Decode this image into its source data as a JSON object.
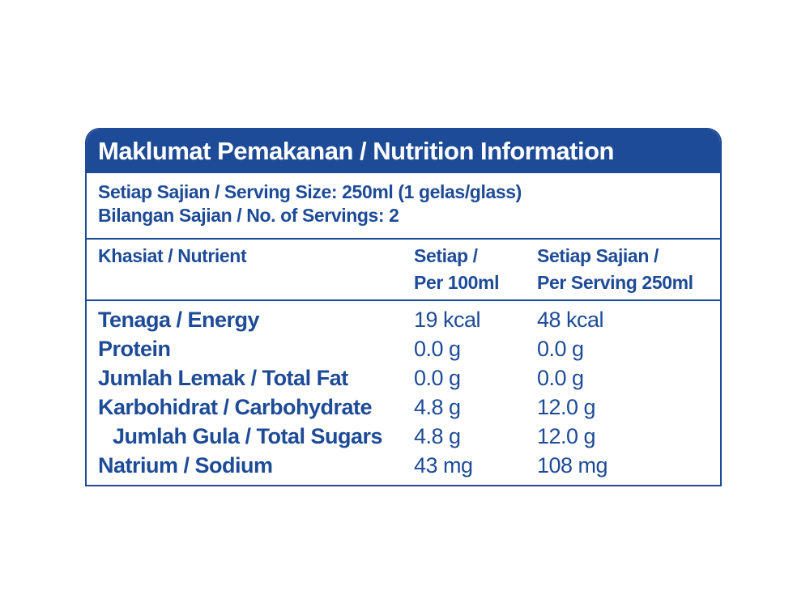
{
  "title": "Maklumat Pemakanan / Nutrition Information",
  "serving": {
    "size": "Setiap Sajian / Serving Size: 250ml (1 gelas/glass)",
    "count": "Bilangan Sajian / No. of Servings: 2"
  },
  "columns": {
    "nutrient": "Khasiat / Nutrient",
    "per100_line1": "Setiap /",
    "per100_line2": "Per 100ml",
    "perserving_line1": "Setiap Sajian /",
    "perserving_line2": "Per Serving 250ml"
  },
  "rows": [
    {
      "name": "Tenaga / Energy",
      "per100": "19 kcal",
      "perserving": "48 kcal"
    },
    {
      "name": "Protein",
      "per100": "0.0 g",
      "perserving": "0.0 g"
    },
    {
      "name": "Jumlah Lemak / Total Fat",
      "per100": "0.0 g",
      "perserving": "0.0 g"
    },
    {
      "name": "Karbohidrat / Carbohydrate",
      "per100": "4.8 g",
      "perserving": "12.0 g"
    },
    {
      "name": "Jumlah Gula / Total Sugars",
      "per100": "4.8 g",
      "perserving": "12.0 g"
    },
    {
      "name": "Natrium / Sodium",
      "per100": "43 mg",
      "perserving": "108 mg"
    }
  ],
  "colors": {
    "brand_blue": "#1e4b97",
    "background": "#ffffff"
  }
}
